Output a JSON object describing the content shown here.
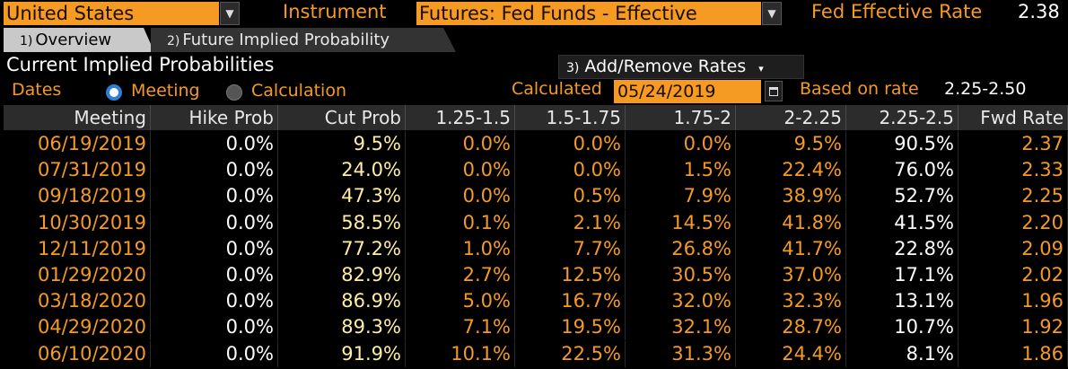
{
  "top": {
    "country_value": "United States",
    "instrument_label": "Instrument",
    "instrument_value": "Futures: Fed Funds - Effective",
    "rate_label": "Fed Effective Rate",
    "rate_value": "2.38"
  },
  "tabs": [
    {
      "num": "1)",
      "label": "Overview"
    },
    {
      "num": "2)",
      "label": "Future Implied Probability"
    }
  ],
  "section": {
    "title": "Current Implied Probabilities",
    "rates_button_num": "3)",
    "rates_button_label": "Add/Remove Rates",
    "rates_button_caret": "▾"
  },
  "options": {
    "dates_label": "Dates",
    "meeting_label": "Meeting",
    "calculation_label": "Calculation",
    "selected": "Meeting",
    "calculated_label": "Calculated",
    "calculated_value": "05/24/2019",
    "based_label": "Based on rate",
    "based_value": "2.25-2.50"
  },
  "table": {
    "columns": [
      "Meeting",
      "Hike Prob",
      "Cut Prob",
      "1.25-1.5",
      "1.5-1.75",
      "1.75-2",
      "2-2.25",
      "2.25-2.5",
      "Fwd Rate"
    ],
    "rows": [
      [
        "06/19/2019",
        "0.0%",
        "9.5%",
        "0.0%",
        "0.0%",
        "0.0%",
        "9.5%",
        "90.5%",
        "2.37"
      ],
      [
        "07/31/2019",
        "0.0%",
        "24.0%",
        "0.0%",
        "0.0%",
        "1.5%",
        "22.4%",
        "76.0%",
        "2.33"
      ],
      [
        "09/18/2019",
        "0.0%",
        "47.3%",
        "0.0%",
        "0.5%",
        "7.9%",
        "38.9%",
        "52.7%",
        "2.25"
      ],
      [
        "10/30/2019",
        "0.0%",
        "58.5%",
        "0.1%",
        "2.1%",
        "14.5%",
        "41.8%",
        "41.5%",
        "2.20"
      ],
      [
        "12/11/2019",
        "0.0%",
        "77.2%",
        "1.0%",
        "7.7%",
        "26.8%",
        "41.7%",
        "22.8%",
        "2.09"
      ],
      [
        "01/29/2020",
        "0.0%",
        "82.9%",
        "2.7%",
        "12.5%",
        "30.5%",
        "37.0%",
        "17.1%",
        "2.02"
      ],
      [
        "03/18/2020",
        "0.0%",
        "86.9%",
        "5.0%",
        "16.7%",
        "32.0%",
        "32.3%",
        "13.1%",
        "1.96"
      ],
      [
        "04/29/2020",
        "0.0%",
        "89.3%",
        "7.1%",
        "19.5%",
        "32.1%",
        "28.7%",
        "10.7%",
        "1.92"
      ],
      [
        "06/10/2020",
        "0.0%",
        "91.9%",
        "10.1%",
        "22.5%",
        "31.3%",
        "24.4%",
        "8.1%",
        "1.86"
      ]
    ],
    "column_colors": [
      "#f59a23",
      "#ffffff",
      "#ffeea0",
      "#f59a23",
      "#f59a23",
      "#f59a23",
      "#f59a23",
      "#ffffff",
      "#f59a23"
    ]
  },
  "colors": {
    "accent": "#f59a23",
    "background": "#000000",
    "header_bg": "#2c2c2c",
    "radio_selected": "#2f7fd6"
  },
  "icons": {
    "dropdown": "caret-down-icon",
    "calendar": "calendar-icon"
  }
}
